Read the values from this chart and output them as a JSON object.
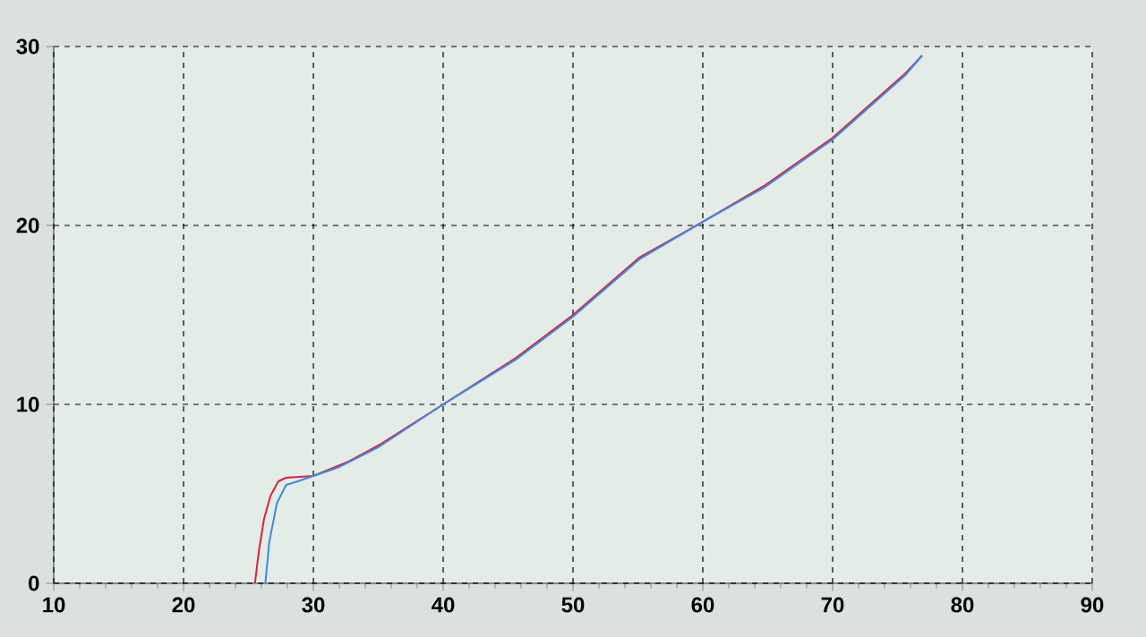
{
  "chart_data": {
    "type": "line",
    "xlim": [
      10,
      90
    ],
    "ylim": [
      0,
      30
    ],
    "xticks": [
      10,
      20,
      30,
      40,
      50,
      60,
      70,
      80,
      90
    ],
    "yticks": [
      0,
      10,
      20,
      30
    ],
    "grid": true,
    "marker": "none",
    "line_style": "solid",
    "series": [
      {
        "color": "#e0203a",
        "x": [
          25.5,
          25.8,
          26.2,
          26.7,
          27.3,
          27.9,
          30,
          32.7,
          35,
          40,
          45.6,
          50,
          55.1,
          60,
          64.7,
          70,
          75.6,
          76.9
        ],
        "values": [
          0,
          1.8,
          3.6,
          4.9,
          5.7,
          5.9,
          6.0,
          6.8,
          7.7,
          10,
          12.6,
          15,
          18.2,
          20.2,
          22.2,
          24.9,
          28.5,
          29.5
        ]
      },
      {
        "color": "#3a8ae8",
        "x": [
          26.3,
          26.6,
          27.2,
          27.9,
          28.8,
          30,
          32,
          35,
          40,
          45.6,
          50,
          55.1,
          60,
          64.7,
          70,
          75.6,
          76.9
        ],
        "values": [
          0,
          2.3,
          4.5,
          5.5,
          5.7,
          6.0,
          6.5,
          7.6,
          10,
          12.5,
          14.9,
          18.1,
          20.2,
          22.1,
          24.8,
          28.4,
          29.5
        ]
      }
    ]
  }
}
